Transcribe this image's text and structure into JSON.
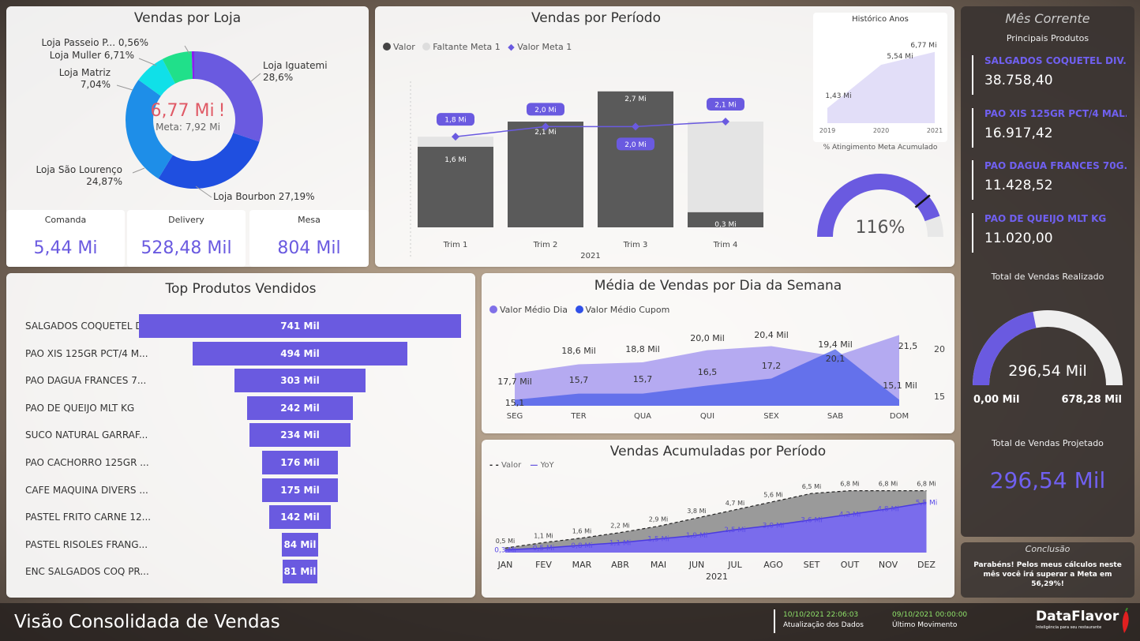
{
  "vendas_loja": {
    "title": "Vendas por Loja",
    "center_value": "6,77 Mi",
    "center_alert": "!",
    "center_meta": "Meta: 7,92 Mi",
    "kpis": [
      {
        "label": "Comanda",
        "value": "5,44 Mi"
      },
      {
        "label": "Delivery",
        "value": "528,48 Mil"
      },
      {
        "label": "Mesa",
        "value": "804 Mil"
      }
    ]
  },
  "vendas_periodo": {
    "title": "Vendas por Período",
    "legend": [
      "Valor",
      "Faltante Meta 1",
      "Valor Meta 1"
    ],
    "year_label": "2021",
    "historico_title": "Histórico Anos",
    "gauge_title": "% Atingimento Meta Acumulado",
    "gauge_value": "116%"
  },
  "top_produtos": {
    "title": "Top Produtos Vendidos"
  },
  "media_semana": {
    "title": "Média de Vendas por Dia da Semana",
    "legend": [
      "Valor Médio Dia",
      "Valor Médio Cupom"
    ],
    "extra_labels": [
      "20",
      "15"
    ]
  },
  "acumuladas": {
    "title": "Vendas Acumuladas por Período",
    "legend": [
      "Valor",
      "YoY"
    ],
    "year_label": "2021"
  },
  "mes_corrente": {
    "title": "Mês Corrente",
    "subtitle": "Principais Produtos",
    "products": [
      {
        "name": "SALGADOS COQUETEL DIV...",
        "value": "38.758,40"
      },
      {
        "name": "PAO XIS 125GR PCT/4 MAL...",
        "value": "16.917,42"
      },
      {
        "name": "PAO DAGUA FRANCES 70G...",
        "value": "11.428,52"
      },
      {
        "name": "PAO DE QUEIJO MLT KG",
        "value": "11.020,00"
      }
    ],
    "realizado_title": "Total de Vendas Realizado",
    "realizado_value": "296,54 Mil",
    "realizado_min": "0,00 Mil",
    "realizado_max": "678,28 Mil",
    "realizado_fraction": 0.437,
    "projetado_title": "Total de Vendas Projetado",
    "projetado_value": "296,54 Mil"
  },
  "conclusao": {
    "title": "Conclusão",
    "text": "Parabéns! Pelos meus cálculos neste mês você irá superar a Meta em 56,29%!"
  },
  "footer": {
    "title": "Visão Consolidada de Vendas",
    "atualizacao_value": "10/10/2021 22:06:03",
    "atualizacao_label": "Atualização dos Dados",
    "movimento_value": "09/10/2021 00:00:00",
    "movimento_label": "Último Movimento",
    "brand": "DataFlavor",
    "brand_tagline": "Inteligência para seu restaurante"
  },
  "colors": {
    "purple": "#6a5ae0",
    "dark_bar": "#5a5a5a",
    "light_bar": "#e4e4e4",
    "blue_dark": "#1f4fe0",
    "blue_mid": "#1e8ee8",
    "cyan": "#10e0e8",
    "green": "#20e08a",
    "violet": "#8a1ef0",
    "alert_red": "#e05a66"
  },
  "chart_data": [
    {
      "type": "pie",
      "variant": "donut",
      "title": "Vendas por Loja",
      "labels": [
        "Loja Iguatemi",
        "Loja Bourbon",
        "Loja São Lourenço",
        "Loja Matriz",
        "Loja Muller",
        "Loja Passeio P..."
      ],
      "values": [
        28.6,
        27.19,
        24.87,
        7.04,
        6.71,
        0.56
      ],
      "value_labels": [
        "28,6%",
        "27,19%",
        "24,87%",
        "7,04%",
        "6,71%",
        "0,56%"
      ],
      "colors": [
        "#6a5ae0",
        "#1f4fe0",
        "#1e8ee8",
        "#10e0e8",
        "#20e08a",
        "#8a1ef0"
      ]
    },
    {
      "type": "bar",
      "title": "Vendas por Período",
      "categories": [
        "Trim 1",
        "Trim 2",
        "Trim 3",
        "Trim 4"
      ],
      "series": [
        {
          "name": "Valor",
          "values": [
            1.6,
            2.1,
            2.7,
            0.3
          ],
          "labels": [
            "1,6 Mi",
            "2,1 Mi",
            "2,7 Mi",
            "0,3 Mi"
          ]
        },
        {
          "name": "Faltante Meta 1",
          "values": [
            0.2,
            0,
            0,
            1.8
          ]
        },
        {
          "name": "Valor Meta 1",
          "values": [
            1.8,
            2.0,
            2.0,
            2.1
          ],
          "labels": [
            "1,8 Mi",
            "2,0 Mi",
            "2,0 Mi",
            "2,1 Mi"
          ]
        }
      ],
      "xlabel": "2021",
      "ylim": [
        0,
        2.9
      ]
    },
    {
      "type": "area",
      "title": "Histórico Anos",
      "categories": [
        "2019",
        "2020",
        "2021"
      ],
      "values": [
        1.43,
        5.54,
        6.77
      ],
      "labels": [
        "1,43 Mi",
        "5,54 Mi",
        "6,77 Mi"
      ],
      "ylim": [
        0,
        7.5
      ]
    },
    {
      "type": "gauge",
      "title": "% Atingimento Meta Acumulado",
      "value": 116,
      "value_label": "116%",
      "max": 130
    },
    {
      "type": "bar",
      "orientation": "funnel",
      "title": "Top Produtos Vendidos",
      "categories": [
        "SALGADOS COQUETEL D...",
        "PAO XIS 125GR PCT/4 M...",
        "PAO DAGUA FRANCES 7...",
        "PAO DE QUEIJO MLT KG",
        "SUCO NATURAL GARRAF...",
        "PAO CACHORRO 125GR ...",
        "CAFE MAQUINA DIVERS ...",
        "PASTEL FRITO CARNE 12...",
        "PASTEL RISOLES FRANG...",
        "ENC SALGADOS COQ PR..."
      ],
      "values": [
        741,
        494,
        303,
        242,
        234,
        176,
        175,
        142,
        84,
        81
      ],
      "labels": [
        "741 Mil",
        "494 Mil",
        "303 Mil",
        "242 Mil",
        "234 Mil",
        "176 Mil",
        "175 Mil",
        "142 Mil",
        "84 Mil",
        "81 Mil"
      ]
    },
    {
      "type": "area",
      "title": "Média de Vendas por Dia da Semana",
      "categories": [
        "SEG",
        "TER",
        "QUA",
        "QUI",
        "SEX",
        "SAB",
        "DOM"
      ],
      "series": [
        {
          "name": "Valor Médio Dia",
          "values": [
            17.7,
            18.6,
            18.8,
            20.0,
            20.4,
            19.4,
            21.5
          ],
          "labels": [
            "17,7 Mil",
            "18,6 Mil",
            "18,8 Mil",
            "20,0 Mil",
            "20,4 Mil",
            "19,4 Mil",
            "21,5"
          ]
        },
        {
          "name": "Valor Médio Cupom",
          "values": [
            15.1,
            15.7,
            15.7,
            16.5,
            17.2,
            20.1,
            15.1
          ],
          "labels": [
            "15,1",
            "15,7",
            "15,7",
            "16,5",
            "17,2",
            "20,1",
            "15,1 Mil"
          ]
        }
      ],
      "ylim": [
        14.5,
        22
      ]
    },
    {
      "type": "area",
      "title": "Vendas Acumuladas por Período",
      "categories": [
        "JAN",
        "FEV",
        "MAR",
        "ABR",
        "MAI",
        "JUN",
        "JUL",
        "AGO",
        "SET",
        "OUT",
        "NOV",
        "DEZ"
      ],
      "series": [
        {
          "name": "Valor",
          "values": [
            0.5,
            1.1,
            1.6,
            2.2,
            2.9,
            3.8,
            4.7,
            5.6,
            6.5,
            6.8,
            6.8,
            6.8
          ],
          "labels": [
            "0,5 Mi",
            "1,1 Mi",
            "1,6 Mi",
            "2,2 Mi",
            "2,9 Mi",
            "3,8 Mi",
            "4,7 Mi",
            "5,6 Mi",
            "6,5 Mi",
            "6,8 Mi",
            "6,8 Mi",
            "6,8 Mi"
          ]
        },
        {
          "name": "YoY",
          "values": [
            0.3,
            0.5,
            0.8,
            1.1,
            1.5,
            1.9,
            2.5,
            3.0,
            3.6,
            4.2,
            4.8,
            5.5
          ],
          "labels": [
            "0,3 Mi",
            "0,5 Mi",
            "0,8 Mi",
            "1,1 Mi",
            "1,5 Mi",
            "1,9 Mi",
            "2,5 Mi",
            "3,0 Mi",
            "3,6 Mi",
            "4,2 Mi",
            "4,8 Mi",
            "5,5 Mi"
          ]
        }
      ],
      "xlabel": "2021",
      "ylim": [
        0,
        7.2
      ]
    },
    {
      "type": "gauge",
      "title": "Total de Vendas Realizado",
      "value": 296.54,
      "min": 0,
      "max": 678.28,
      "value_label": "296,54 Mil",
      "min_label": "0,00 Mil",
      "max_label": "678,28 Mil"
    }
  ]
}
